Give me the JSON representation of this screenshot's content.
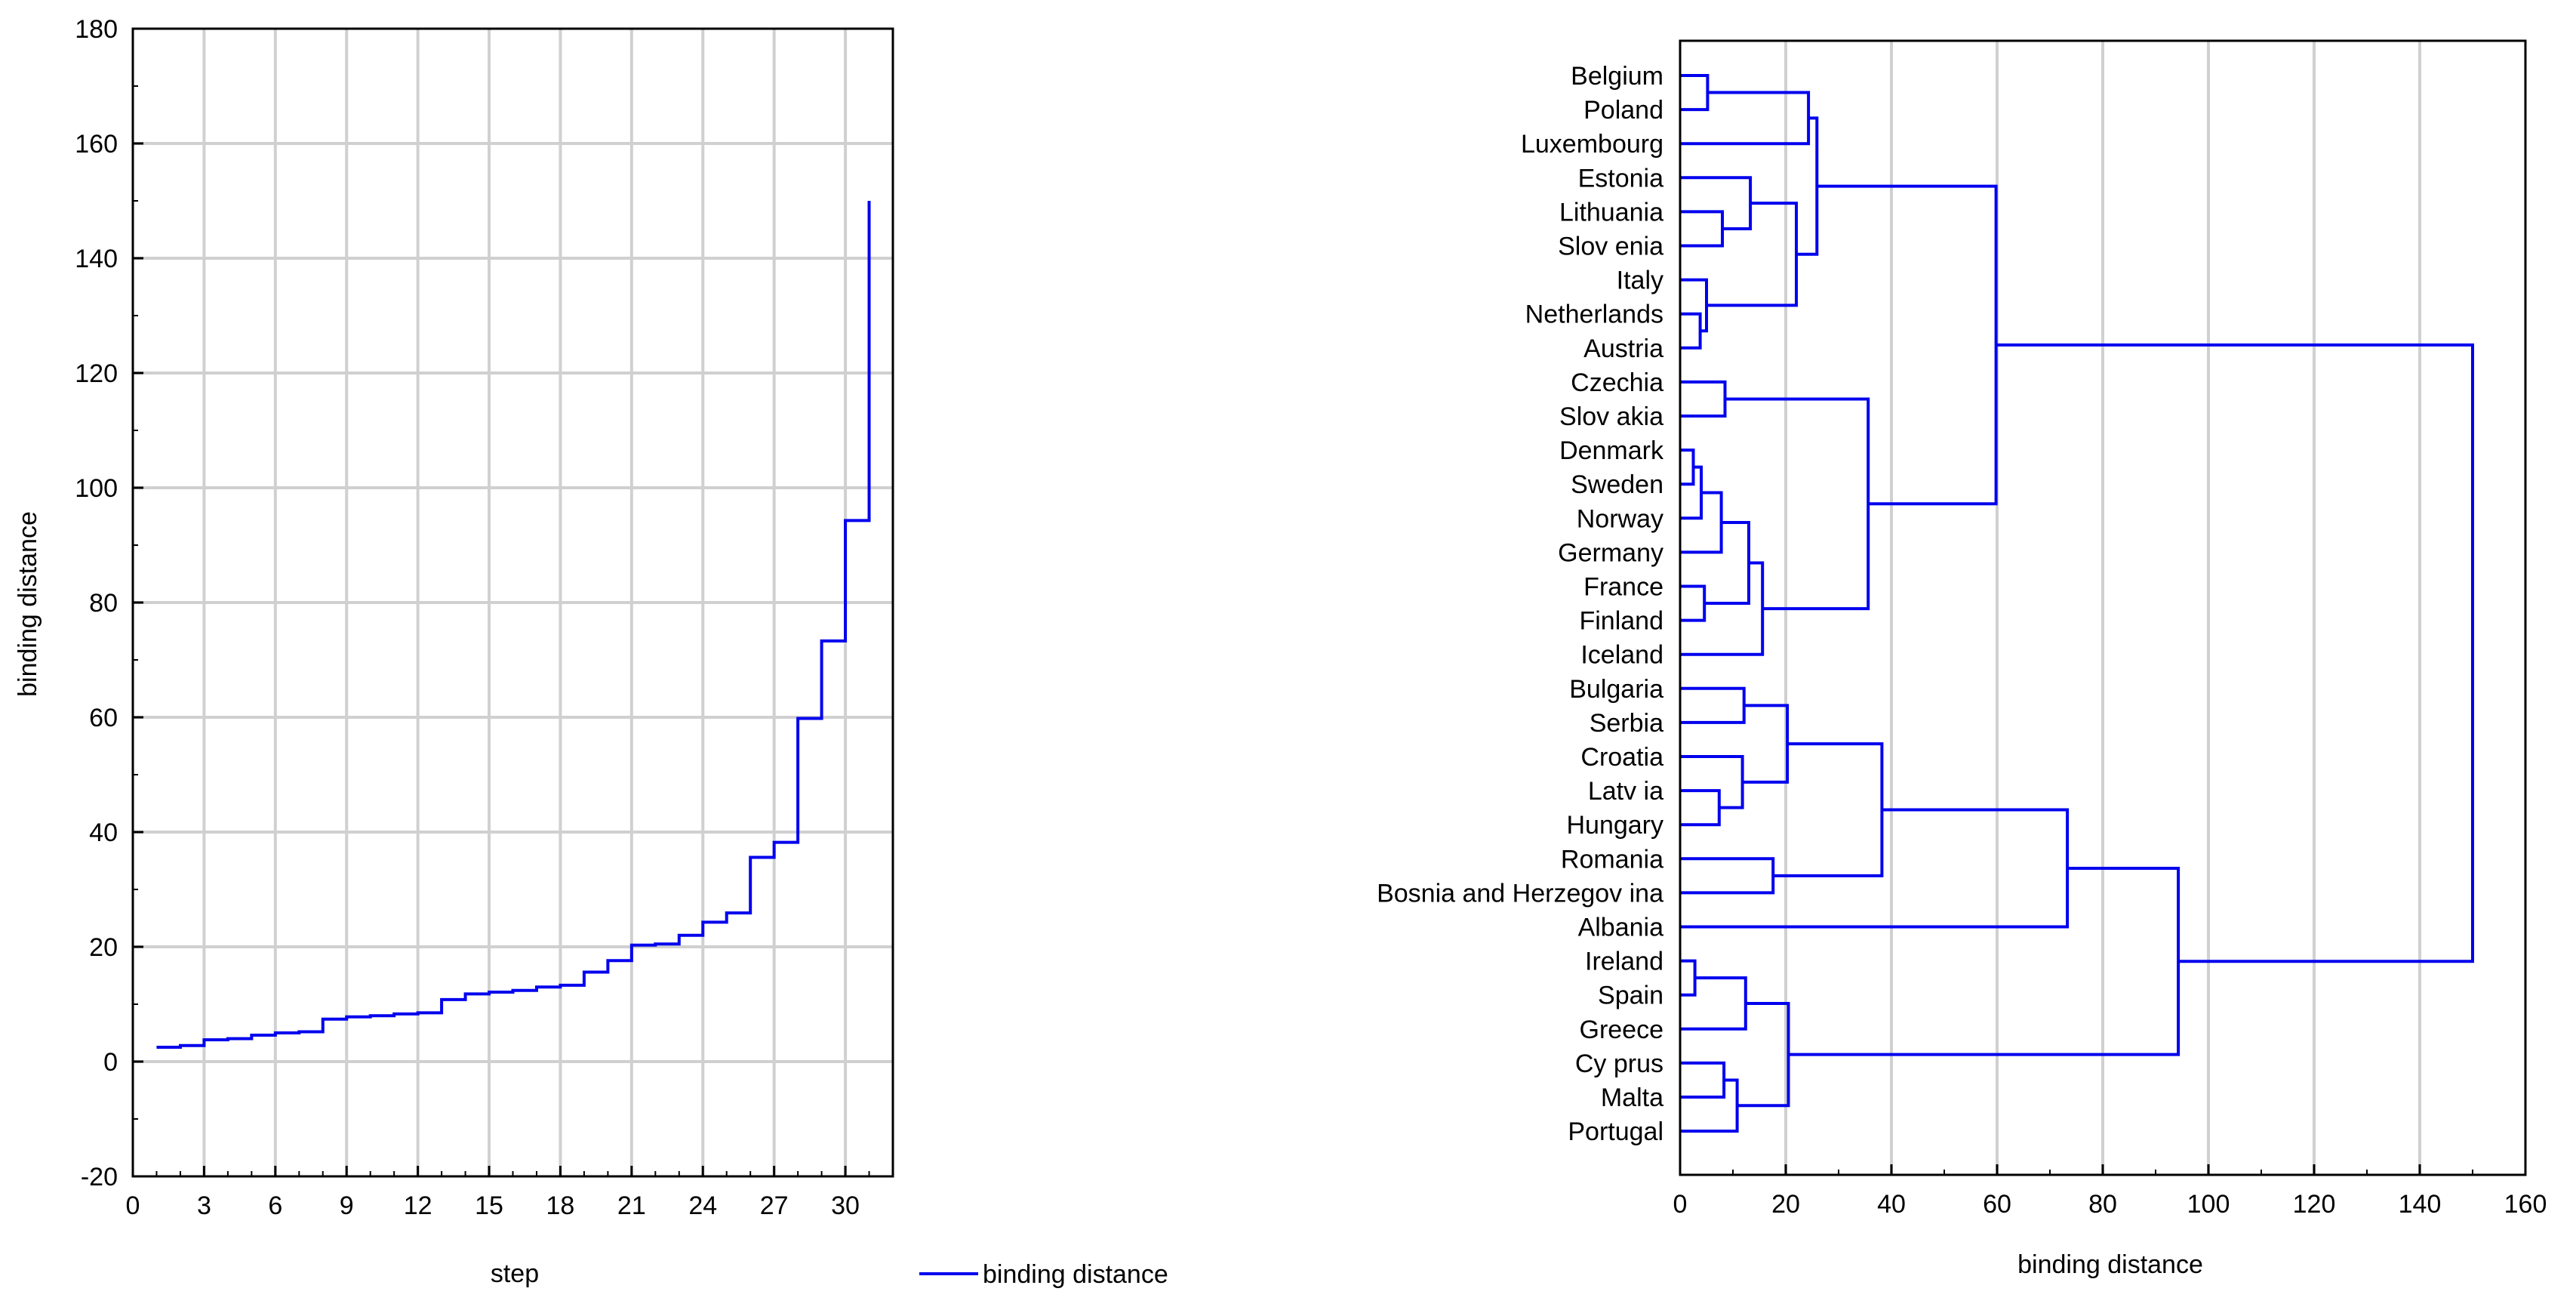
{
  "colors": {
    "line": "#0000ee",
    "grid": "#d0d0d0",
    "axis": "#000000"
  },
  "chart_data": [
    {
      "type": "line",
      "title": "",
      "xlabel": "step",
      "ylabel": "binding distance",
      "xlim": [
        0,
        32
      ],
      "ylim": [
        -20,
        180
      ],
      "x_ticks": [
        0,
        3,
        6,
        9,
        12,
        15,
        18,
        21,
        24,
        27,
        30
      ],
      "y_ticks": [
        -20,
        0,
        20,
        40,
        60,
        80,
        100,
        120,
        140,
        160,
        180
      ],
      "grid": true,
      "legend_position": "bottom-center",
      "series": [
        {
          "name": "binding distance",
          "step": true,
          "x": [
            1,
            2,
            3,
            4,
            5,
            6,
            7,
            8,
            9,
            10,
            11,
            12,
            13,
            14,
            15,
            16,
            17,
            18,
            19,
            20,
            21,
            22,
            23,
            24,
            25,
            26,
            27,
            28,
            29,
            30,
            31
          ],
          "values": [
            2.5,
            2.8,
            3.8,
            4.0,
            4.6,
            5.0,
            5.2,
            7.4,
            7.8,
            8.0,
            8.3,
            8.5,
            10.8,
            11.8,
            12.1,
            12.4,
            13.0,
            13.3,
            15.6,
            17.6,
            20.3,
            20.5,
            22.0,
            24.3,
            25.9,
            35.6,
            38.2,
            59.8,
            73.3,
            94.3,
            150.0
          ]
        }
      ]
    },
    {
      "type": "dendrogram",
      "title": "",
      "xlabel": "binding distance",
      "xlim": [
        0,
        160
      ],
      "x_ticks": [
        0,
        20,
        40,
        60,
        80,
        100,
        120,
        140,
        160
      ],
      "grid": true,
      "leaves": [
        "Belgium",
        "Poland",
        "Luxembourg",
        "Estonia",
        "Lithuania",
        "Slovenia",
        "Italy",
        "Netherlands",
        "Austria",
        "Czechia",
        "Slovakia",
        "Denmark",
        "Sweden",
        "Norway",
        "Germany",
        "France",
        "Finland",
        "Iceland",
        "Bulgaria",
        "Serbia",
        "Croatia",
        "Latvia",
        "Hungary",
        "Romania",
        "Bosnia and Herzegovina",
        "Albania",
        "Ireland",
        "Spain",
        "Greece",
        "Cyprus",
        "Malta",
        "Portugal"
      ],
      "leaf_labels": [
        "Belgium",
        "Poland",
        "Luxembourg",
        "Estonia",
        "Lithuania",
        "Slov enia",
        "Italy",
        "Netherlands",
        "Austria",
        "Czechia",
        "Slov akia",
        "Denmark",
        "Sweden",
        "Norway",
        "Germany",
        "France",
        "Finland",
        "Iceland",
        "Bulgaria",
        "Serbia",
        "Croatia",
        "Latv ia",
        "Hungary",
        "Romania",
        "Bosnia and Herzegov ina",
        "Albania",
        "Ireland",
        "Spain",
        "Greece",
        "Cy prus",
        "Malta",
        "Portugal"
      ],
      "merges": [
        {
          "a": "L11",
          "b": "L12",
          "h": 2.5
        },
        {
          "a": "L26",
          "b": "L27",
          "h": 2.8
        },
        {
          "a": "L7",
          "b": "L8",
          "h": 3.8
        },
        {
          "a": "M0",
          "b": "L13",
          "h": 4.0
        },
        {
          "a": "L15",
          "b": "L16",
          "h": 4.6
        },
        {
          "a": "L6",
          "b": "M2",
          "h": 5.0
        },
        {
          "a": "L0",
          "b": "L1",
          "h": 5.2
        },
        {
          "a": "L21",
          "b": "L22",
          "h": 7.4
        },
        {
          "a": "M3",
          "b": "L14",
          "h": 7.8
        },
        {
          "a": "L4",
          "b": "L5",
          "h": 8.0
        },
        {
          "a": "L29",
          "b": "L30",
          "h": 8.3
        },
        {
          "a": "L9",
          "b": "L10",
          "h": 8.5
        },
        {
          "a": "M10",
          "b": "L31",
          "h": 10.8
        },
        {
          "a": "L20",
          "b": "M7",
          "h": 11.8
        },
        {
          "a": "L18",
          "b": "L19",
          "h": 12.1
        },
        {
          "a": "M1",
          "b": "L28",
          "h": 12.4
        },
        {
          "a": "M8",
          "b": "M4",
          "h": 13.0
        },
        {
          "a": "L3",
          "b": "M9",
          "h": 13.3
        },
        {
          "a": "M16",
          "b": "L17",
          "h": 15.6
        },
        {
          "a": "L23",
          "b": "L24",
          "h": 17.6
        },
        {
          "a": "M14",
          "b": "M13",
          "h": 20.3
        },
        {
          "a": "M15",
          "b": "M12",
          "h": 20.5
        },
        {
          "a": "M17",
          "b": "M5",
          "h": 22.0
        },
        {
          "a": "M6",
          "b": "L2",
          "h": 24.3
        },
        {
          "a": "M23",
          "b": "M22",
          "h": 25.9
        },
        {
          "a": "M11",
          "b": "M18",
          "h": 35.6
        },
        {
          "a": "M20",
          "b": "M19",
          "h": 38.2
        },
        {
          "a": "M24",
          "b": "M25",
          "h": 59.8
        },
        {
          "a": "M26",
          "b": "L25",
          "h": 73.3
        },
        {
          "a": "M28",
          "b": "M21",
          "h": 94.3
        },
        {
          "a": "M27",
          "b": "M29",
          "h": 150.0
        }
      ]
    }
  ]
}
